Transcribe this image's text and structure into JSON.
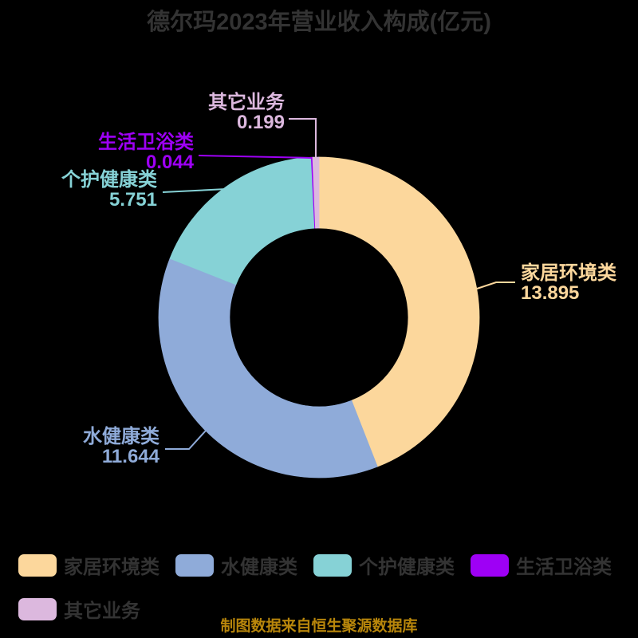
{
  "title": "德尔玛2023年营业收入构成(亿元)",
  "chart_data": {
    "type": "pie",
    "subtype": "donut",
    "title": "德尔玛2023年营业收入构成(亿元)",
    "unit": "亿元",
    "direction": "clockwise",
    "start_angle_deg": 0,
    "series": [
      {
        "name": "家居环境类",
        "value": 13.895,
        "color": "#fcd79c"
      },
      {
        "name": "水健康类",
        "value": 11.644,
        "color": "#8fabd9"
      },
      {
        "name": "个护健康类",
        "value": 5.751,
        "color": "#86d2d6"
      },
      {
        "name": "生活卫浴类",
        "value": 0.044,
        "color": "#9e00f5"
      },
      {
        "name": "其它业务",
        "value": 0.199,
        "color": "#dcb8de"
      }
    ],
    "legend_position": "bottom-left",
    "labels_show_value": true
  },
  "footer": {
    "source": "制图数据来自恒生聚源数据库"
  },
  "colors": {
    "background": "#000000",
    "title_text": "#333333",
    "legend_text": "#333333",
    "source_text": "#b8860b"
  }
}
